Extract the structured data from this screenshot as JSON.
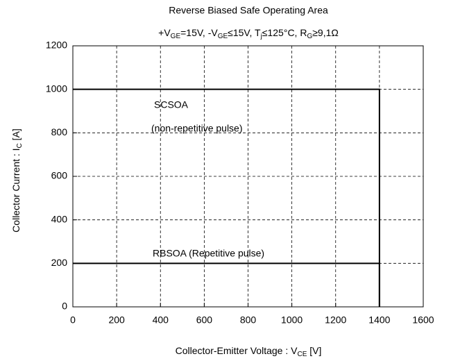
{
  "chart_data": {
    "type": "line",
    "title": "Reverse Biased Safe Operating Area",
    "subtitle": [
      "+V",
      "GE",
      "=15V, -V",
      "GE",
      "≤15V, T",
      "j",
      "≤125°C, R",
      "G",
      "≥9,1Ω"
    ],
    "xlabel": [
      "Collector-Emitter Voltage  : V",
      "CE",
      "  [V]"
    ],
    "ylabel": [
      "Collector Current : I",
      "C",
      " [A]"
    ],
    "series": [
      {
        "color": "#000000",
        "x": [
          0,
          1400,
          1400
        ],
        "values": [
          1000,
          1000,
          0
        ]
      },
      {
        "color": "#000000",
        "x": [
          0,
          1400,
          1400
        ],
        "values": [
          200,
          200,
          0
        ]
      }
    ],
    "annotations": [
      "SCSOA",
      "(non-repetitive pulse)",
      "RBSOA (Repetitive pulse)"
    ],
    "xlim": [
      0,
      1600
    ],
    "xticks": [
      0,
      200,
      400,
      600,
      800,
      1000,
      1200,
      1400,
      1600
    ],
    "ylim": [
      0,
      1200
    ],
    "yticks": [
      0,
      200,
      400,
      600,
      800,
      1000,
      1200
    ],
    "grid": true
  }
}
